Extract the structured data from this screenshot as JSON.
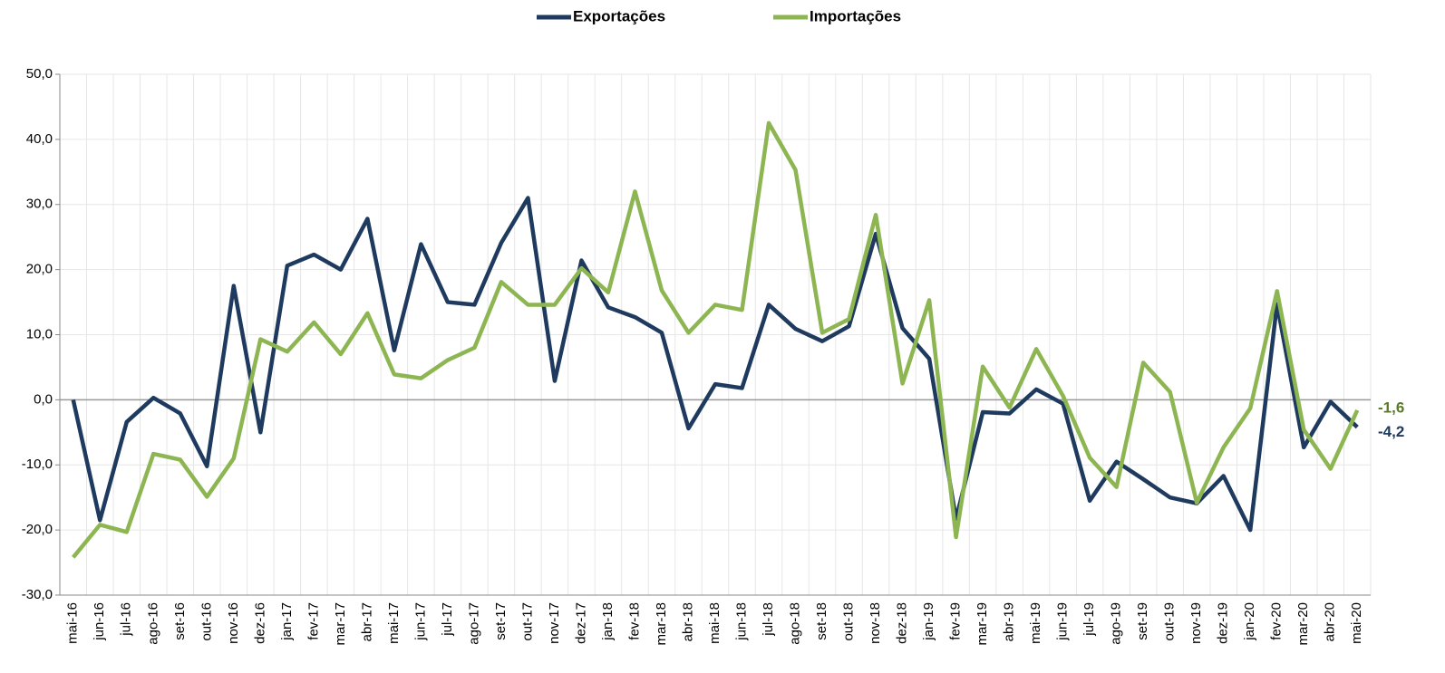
{
  "chart_data": {
    "type": "line",
    "categories": [
      "mai-16",
      "jun-16",
      "jul-16",
      "ago-16",
      "set-16",
      "out-16",
      "nov-16",
      "dez-16",
      "jan-17",
      "fev-17",
      "mar-17",
      "abr-17",
      "mai-17",
      "jun-17",
      "jul-17",
      "ago-17",
      "set-17",
      "out-17",
      "nov-17",
      "dez-17",
      "jan-18",
      "fev-18",
      "mar-18",
      "abr-18",
      "mai-18",
      "jun-18",
      "jul-18",
      "ago-18",
      "set-18",
      "out-18",
      "nov-18",
      "dez-18",
      "jan-19",
      "fev-19",
      "mar-19",
      "abr-19",
      "mai-19",
      "jun-19",
      "jul-19",
      "ago-19",
      "set-19",
      "out-19",
      "nov-19",
      "dez-19",
      "jan-20",
      "fev-20",
      "mar-20",
      "abr-20",
      "mai-20"
    ],
    "series": [
      {
        "name": "Exportações",
        "color": "#1f3a5f",
        "end_label": "-4,2",
        "values": [
          0,
          -18.5,
          -3.4,
          0.3,
          -2.1,
          -10.2,
          17.5,
          -5,
          20.6,
          22.3,
          20,
          27.8,
          7.6,
          23.9,
          15,
          14.6,
          24.1,
          31,
          2.9,
          21.4,
          14.2,
          12.7,
          10.3,
          -4.4,
          2.4,
          1.8,
          14.6,
          10.9,
          9,
          11.3,
          25.5,
          11,
          6.3,
          -18.3,
          -1.9,
          -2.1,
          1.6,
          -0.6,
          -15.5,
          -9.5,
          -12.2,
          -15,
          -15.9,
          -11.7,
          -20,
          14.7,
          -7.3,
          -0.3,
          -4.2
        ]
      },
      {
        "name": "Importações",
        "color": "#8db652",
        "end_label": "-1,6",
        "values": [
          -24.2,
          -19.2,
          -20.3,
          -8.3,
          -9.2,
          -14.9,
          -9,
          9.3,
          7.4,
          11.9,
          7,
          13.3,
          3.9,
          3.3,
          6.1,
          8,
          18.1,
          14.6,
          14.6,
          20.2,
          16.5,
          32,
          16.8,
          10.3,
          14.6,
          13.8,
          42.5,
          35.3,
          10.3,
          12.4,
          28.4,
          2.5,
          15.3,
          -21.1,
          5.1,
          -1.2,
          7.8,
          0.6,
          -8.9,
          -13.4,
          5.7,
          1.2,
          -15.8,
          -7.3,
          -1.3,
          16.7,
          -4.6,
          -10.6,
          -1.6
        ]
      }
    ],
    "ylim": [
      -30,
      50
    ],
    "yticks": [
      {
        "value": -30,
        "label": "-30,0"
      },
      {
        "value": -20,
        "label": "-20,0"
      },
      {
        "value": -10,
        "label": "-10,0"
      },
      {
        "value": 0,
        "label": "0,0"
      },
      {
        "value": 10,
        "label": "10,0"
      },
      {
        "value": 20,
        "label": "20,0"
      },
      {
        "value": 30,
        "label": "30,0"
      },
      {
        "value": 40,
        "label": "40,0"
      },
      {
        "value": 50,
        "label": "50,0"
      }
    ],
    "grid": true,
    "legend": "top"
  }
}
